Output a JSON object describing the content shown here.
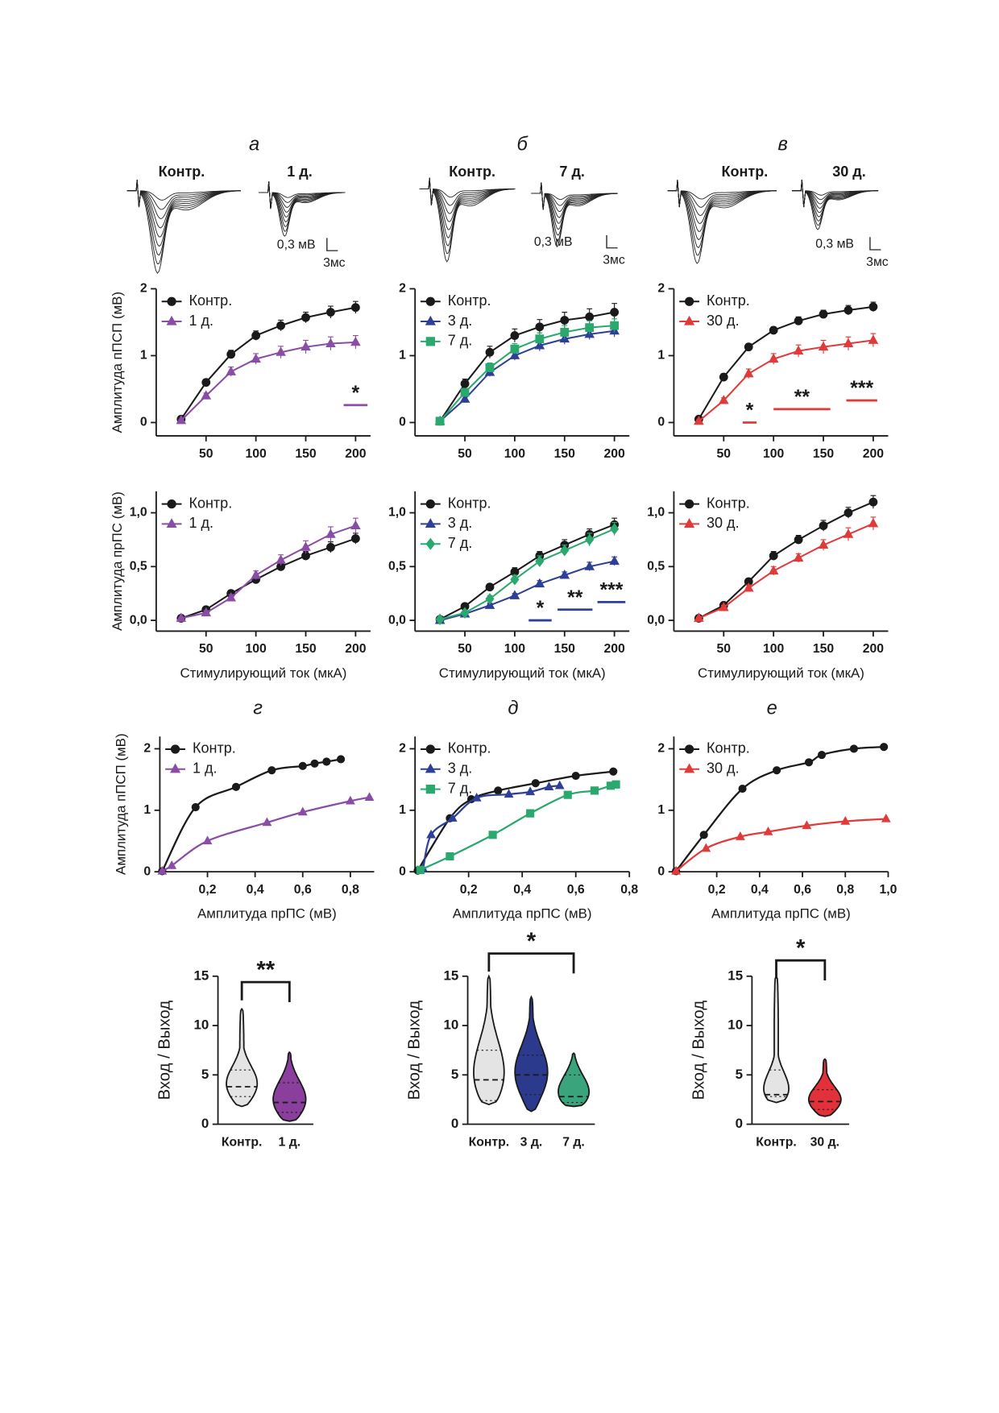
{
  "traces": [
    {
      "letter": "а",
      "labels": [
        "Контр.",
        "1 д."
      ],
      "scale_y": "0,3 мВ",
      "scale_x": "3мс"
    },
    {
      "letter": "б",
      "labels": [
        "Контр.",
        "7 д."
      ],
      "scale_y": "0,3 мВ",
      "scale_x": "3мс"
    },
    {
      "letter": "в",
      "labels": [
        "Контр.",
        "30 д."
      ],
      "scale_y": "0,3 мВ",
      "scale_x": "3мс"
    }
  ],
  "chart_data": [
    {
      "type": "line",
      "ylabel": "Амплитуда пПСП (мВ)",
      "x": [
        25,
        50,
        75,
        100,
        125,
        150,
        175,
        200
      ],
      "xlim": [
        0,
        215
      ],
      "xticks": [
        50,
        100,
        150,
        200
      ],
      "ylim": [
        -0.2,
        2
      ],
      "yticks": [
        0,
        1,
        2
      ],
      "series": [
        {
          "name": "Контр.",
          "color": "#1a1a1a",
          "marker": "circle",
          "values": [
            0.05,
            0.6,
            1.02,
            1.3,
            1.45,
            1.57,
            1.65,
            1.72
          ],
          "errors": [
            0.02,
            0.05,
            0.06,
            0.07,
            0.08,
            0.08,
            0.09,
            0.09
          ]
        },
        {
          "name": "1 д.",
          "color": "#8a4da6",
          "marker": "triangle",
          "values": [
            0.03,
            0.4,
            0.76,
            0.95,
            1.05,
            1.13,
            1.18,
            1.2
          ],
          "errors": [
            0.02,
            0.04,
            0.07,
            0.08,
            0.09,
            0.1,
            0.1,
            0.1
          ]
        }
      ],
      "annotations": [
        {
          "text": "*",
          "x_from": 188,
          "x_to": 212,
          "y": 0.26,
          "color": "#8a4da6"
        }
      ]
    },
    {
      "type": "line",
      "x": [
        25,
        50,
        75,
        100,
        125,
        150,
        175,
        200
      ],
      "xlim": [
        0,
        215
      ],
      "xticks": [
        50,
        100,
        150,
        200
      ],
      "ylim": [
        -0.2,
        2
      ],
      "yticks": [
        0,
        1,
        2
      ],
      "series": [
        {
          "name": "Контр.",
          "color": "#1a1a1a",
          "marker": "circle",
          "values": [
            0.02,
            0.58,
            1.05,
            1.3,
            1.43,
            1.53,
            1.58,
            1.65
          ],
          "errors": [
            0.02,
            0.07,
            0.09,
            0.1,
            0.11,
            0.12,
            0.12,
            0.13
          ]
        },
        {
          "name": "3 д.",
          "color": "#2e3f96",
          "marker": "triangle",
          "values": [
            0.02,
            0.35,
            0.75,
            1.0,
            1.15,
            1.25,
            1.32,
            1.37
          ],
          "errors": [
            0.02,
            0.05,
            0.06,
            0.07,
            0.08,
            0.08,
            0.08,
            0.09
          ]
        },
        {
          "name": "7 д.",
          "color": "#2aa86e",
          "marker": "square",
          "values": [
            0.02,
            0.45,
            0.82,
            1.1,
            1.25,
            1.35,
            1.42,
            1.45
          ],
          "errors": [
            0.02,
            0.06,
            0.07,
            0.08,
            0.09,
            0.1,
            0.1,
            0.1
          ]
        }
      ],
      "annotations": []
    },
    {
      "type": "line",
      "x": [
        25,
        50,
        75,
        100,
        125,
        150,
        175,
        200
      ],
      "xlim": [
        0,
        215
      ],
      "xticks": [
        50,
        100,
        150,
        200
      ],
      "ylim": [
        -0.2,
        2
      ],
      "yticks": [
        0,
        1,
        2
      ],
      "series": [
        {
          "name": "Контр.",
          "color": "#1a1a1a",
          "marker": "circle",
          "values": [
            0.05,
            0.68,
            1.13,
            1.38,
            1.52,
            1.62,
            1.68,
            1.73
          ],
          "errors": [
            0.02,
            0.05,
            0.05,
            0.05,
            0.06,
            0.06,
            0.07,
            0.07
          ]
        },
        {
          "name": "30 д.",
          "color": "#e03a3a",
          "marker": "triangle",
          "values": [
            0.02,
            0.33,
            0.73,
            0.95,
            1.07,
            1.13,
            1.18,
            1.23
          ],
          "errors": [
            0.02,
            0.04,
            0.07,
            0.08,
            0.09,
            0.1,
            0.1,
            0.1
          ]
        }
      ],
      "annotations": [
        {
          "text": "*",
          "x_from": 69,
          "x_to": 83,
          "y": 0.0,
          "color": "#e03a3a"
        },
        {
          "text": "**",
          "x_from": 100,
          "x_to": 157,
          "y": 0.2,
          "color": "#e03a3a"
        },
        {
          "text": "***",
          "x_from": 173,
          "x_to": 204,
          "y": 0.33,
          "color": "#e03a3a"
        }
      ]
    },
    {
      "type": "line",
      "ylabel": "Амплитуда прПС (мВ)",
      "xlabel": "Стимулирующий ток (мкА)",
      "x": [
        25,
        50,
        75,
        100,
        125,
        150,
        175,
        200
      ],
      "xlim": [
        0,
        215
      ],
      "xticks": [
        50,
        100,
        150,
        200
      ],
      "ylim": [
        -0.1,
        1.2
      ],
      "yticks": [
        {
          "value": 0,
          "label": "0,0"
        },
        {
          "value": 0.5,
          "label": "0,5"
        },
        {
          "value": 1,
          "label": "1,0"
        }
      ],
      "series": [
        {
          "name": "Контр.",
          "color": "#1a1a1a",
          "marker": "circle",
          "values": [
            0.02,
            0.1,
            0.25,
            0.38,
            0.5,
            0.6,
            0.68,
            0.76
          ],
          "errors": [
            0.01,
            0.02,
            0.03,
            0.03,
            0.04,
            0.04,
            0.05,
            0.05
          ]
        },
        {
          "name": "1 д.",
          "color": "#8a4da6",
          "marker": "triangle",
          "values": [
            0.02,
            0.07,
            0.21,
            0.42,
            0.56,
            0.68,
            0.8,
            0.88
          ],
          "errors": [
            0.01,
            0.02,
            0.03,
            0.04,
            0.05,
            0.06,
            0.07,
            0.07
          ]
        }
      ],
      "annotations": []
    },
    {
      "type": "line",
      "xlabel": "Стимулирующий ток (мкА)",
      "x": [
        25,
        50,
        75,
        100,
        125,
        150,
        175,
        200
      ],
      "xlim": [
        0,
        215
      ],
      "xticks": [
        50,
        100,
        150,
        200
      ],
      "ylim": [
        -0.1,
        1.2
      ],
      "yticks": [
        {
          "value": 0,
          "label": "0,0"
        },
        {
          "value": 0.5,
          "label": "0,5"
        },
        {
          "value": 1,
          "label": "1,0"
        }
      ],
      "series": [
        {
          "name": "Контр.",
          "color": "#1a1a1a",
          "marker": "circle",
          "values": [
            0.01,
            0.13,
            0.31,
            0.45,
            0.6,
            0.7,
            0.8,
            0.89
          ],
          "errors": [
            0.01,
            0.02,
            0.03,
            0.04,
            0.04,
            0.05,
            0.05,
            0.06
          ]
        },
        {
          "name": "3 д.",
          "color": "#2e3f96",
          "marker": "triangle",
          "values": [
            0.0,
            0.06,
            0.14,
            0.23,
            0.34,
            0.42,
            0.5,
            0.55
          ],
          "errors": [
            0.01,
            0.01,
            0.02,
            0.02,
            0.03,
            0.03,
            0.04,
            0.04
          ]
        },
        {
          "name": "7 д.",
          "color": "#2aa86e",
          "marker": "diamond",
          "values": [
            0.01,
            0.07,
            0.2,
            0.38,
            0.55,
            0.65,
            0.75,
            0.85
          ],
          "errors": [
            0.01,
            0.02,
            0.03,
            0.04,
            0.05,
            0.05,
            0.06,
            0.06
          ]
        }
      ],
      "annotations": [
        {
          "text": "*",
          "x_from": 114,
          "x_to": 137,
          "y": 0.0,
          "color": "#2e3f96"
        },
        {
          "text": "**",
          "x_from": 143,
          "x_to": 178,
          "y": 0.1,
          "color": "#2e3f96"
        },
        {
          "text": "***",
          "x_from": 183,
          "x_to": 211,
          "y": 0.17,
          "color": "#2e3f96"
        }
      ]
    },
    {
      "type": "line",
      "xlabel": "Стимулирующий ток (мкА)",
      "x": [
        25,
        50,
        75,
        100,
        125,
        150,
        175,
        200
      ],
      "xlim": [
        0,
        215
      ],
      "xticks": [
        50,
        100,
        150,
        200
      ],
      "ylim": [
        -0.1,
        1.2
      ],
      "yticks": [
        {
          "value": 0,
          "label": "0,0"
        },
        {
          "value": 0.5,
          "label": "0,5"
        },
        {
          "value": 1,
          "label": "1,0"
        }
      ],
      "series": [
        {
          "name": "Контр.",
          "color": "#1a1a1a",
          "marker": "circle",
          "values": [
            0.02,
            0.14,
            0.36,
            0.6,
            0.75,
            0.88,
            1.0,
            1.1
          ],
          "errors": [
            0.01,
            0.02,
            0.03,
            0.04,
            0.04,
            0.05,
            0.05,
            0.06
          ]
        },
        {
          "name": "30 д.",
          "color": "#e03a3a",
          "marker": "triangle",
          "values": [
            0.02,
            0.12,
            0.3,
            0.46,
            0.58,
            0.7,
            0.8,
            0.9
          ],
          "errors": [
            0.01,
            0.02,
            0.03,
            0.04,
            0.04,
            0.05,
            0.06,
            0.06
          ]
        }
      ],
      "annotations": []
    },
    {
      "type": "scatter",
      "panel_label": "г",
      "ylabel": "Амплитуда пПСП (мВ)",
      "xlabel": "Амплитуда прПС (мВ)",
      "xlim": [
        0,
        0.9
      ],
      "xticks": [
        {
          "value": 0.2,
          "label": "0,2"
        },
        {
          "value": 0.4,
          "label": "0,4"
        },
        {
          "value": 0.6,
          "label": "0,6"
        },
        {
          "value": 0.8,
          "label": "0,8"
        }
      ],
      "ylim": [
        0,
        2.2
      ],
      "yticks": [
        0,
        1,
        2
      ],
      "series": [
        {
          "name": "Контр.",
          "color": "#1a1a1a",
          "marker": "circle",
          "x": [
            0.01,
            0.15,
            0.32,
            0.47,
            0.6,
            0.65,
            0.7,
            0.76
          ],
          "y": [
            0.01,
            1.05,
            1.38,
            1.65,
            1.72,
            1.76,
            1.79,
            1.83
          ]
        },
        {
          "name": "1 д.",
          "color": "#8a4da6",
          "marker": "triangle",
          "x": [
            0.01,
            0.05,
            0.2,
            0.45,
            0.6,
            0.8,
            0.88
          ],
          "y": [
            0.01,
            0.1,
            0.5,
            0.8,
            0.97,
            1.15,
            1.21
          ]
        }
      ]
    },
    {
      "type": "scatter",
      "panel_label": "д",
      "xlabel": "Амплитуда прПС (мВ)",
      "xlim": [
        0,
        0.8
      ],
      "xticks": [
        {
          "value": 0.2,
          "label": "0,2"
        },
        {
          "value": 0.4,
          "label": "0,4"
        },
        {
          "value": 0.6,
          "label": "0,6"
        },
        {
          "value": 0.8,
          "label": "0,8"
        }
      ],
      "ylim": [
        0,
        2.2
      ],
      "yticks": [
        0,
        1,
        2
      ],
      "series": [
        {
          "name": "Контр.",
          "color": "#1a1a1a",
          "marker": "circle",
          "x": [
            0.01,
            0.13,
            0.21,
            0.31,
            0.45,
            0.6,
            0.74
          ],
          "y": [
            0.02,
            0.87,
            1.18,
            1.32,
            1.44,
            1.56,
            1.63
          ]
        },
        {
          "name": "3 д.",
          "color": "#2e3f96",
          "marker": "triangle",
          "x": [
            0.03,
            0.06,
            0.14,
            0.23,
            0.35,
            0.43,
            0.5,
            0.54
          ],
          "y": [
            0.05,
            0.6,
            0.87,
            1.2,
            1.26,
            1.3,
            1.38,
            1.4
          ]
        },
        {
          "name": "7 д.",
          "color": "#2aa86e",
          "marker": "square",
          "x": [
            0.02,
            0.13,
            0.29,
            0.43,
            0.57,
            0.67,
            0.73,
            0.75
          ],
          "y": [
            0.03,
            0.25,
            0.6,
            0.95,
            1.25,
            1.32,
            1.4,
            1.42
          ]
        }
      ]
    },
    {
      "type": "scatter",
      "panel_label": "е",
      "xlabel": "Амплитуда прПС (мВ)",
      "xlim": [
        0,
        1.0
      ],
      "xticks": [
        {
          "value": 0.2,
          "label": "0,2"
        },
        {
          "value": 0.4,
          "label": "0,4"
        },
        {
          "value": 0.6,
          "label": "0,6"
        },
        {
          "value": 0.8,
          "label": "0,8"
        },
        {
          "value": 1.0,
          "label": "1,0"
        }
      ],
      "ylim": [
        0,
        2.2
      ],
      "yticks": [
        0,
        1,
        2
      ],
      "series": [
        {
          "name": "Контр.",
          "color": "#1a1a1a",
          "marker": "circle",
          "x": [
            0.01,
            0.14,
            0.32,
            0.48,
            0.63,
            0.69,
            0.84,
            0.98
          ],
          "y": [
            0.01,
            0.6,
            1.35,
            1.65,
            1.78,
            1.9,
            2.0,
            2.03
          ]
        },
        {
          "name": "30 д.",
          "color": "#e03a3a",
          "marker": "triangle",
          "x": [
            0.01,
            0.15,
            0.31,
            0.44,
            0.62,
            0.8,
            0.99
          ],
          "y": [
            0.01,
            0.38,
            0.57,
            0.65,
            0.75,
            0.82,
            0.86
          ]
        }
      ]
    },
    {
      "type": "violin",
      "ylabel": "Вход / Выход",
      "ylim": [
        0,
        15
      ],
      "yticks": [
        0,
        5,
        10,
        15
      ],
      "groups": [
        {
          "name": "Контр.",
          "color": "#e4e4e4",
          "min": 1.8,
          "q1": 2.8,
          "median": 3.8,
          "q3": 5.5,
          "max": 11.7
        },
        {
          "name": "1 д.",
          "color": "#8b3f9c",
          "min": 0.3,
          "q1": 1.2,
          "median": 2.2,
          "q3": 4.2,
          "max": 7.3
        }
      ],
      "annotations": [
        {
          "text": "**",
          "from": 0,
          "to": 1,
          "y": 14.4
        }
      ]
    },
    {
      "type": "violin",
      "ylabel": "Вход / Выход",
      "ylim": [
        0,
        15
      ],
      "yticks": [
        0,
        5,
        10,
        15
      ],
      "groups": [
        {
          "name": "Контр.",
          "color": "#e4e4e4",
          "min": 2.0,
          "q1": 2.4,
          "median": 4.5,
          "q3": 7.5,
          "max": 15
        },
        {
          "name": "3 д.",
          "color": "#2c3a8e",
          "min": 1.3,
          "q1": 3.0,
          "median": 5.0,
          "q3": 7.0,
          "max": 12.9
        },
        {
          "name": "7 д.",
          "color": "#3aa57d",
          "min": 1.8,
          "q1": 2.2,
          "median": 2.8,
          "q3": 5.0,
          "max": 7.2
        }
      ],
      "annotations": [
        {
          "text": "*",
          "from": 0,
          "to": 2,
          "y": 17.3
        }
      ]
    },
    {
      "type": "violin",
      "ylabel": "Вход / Выход",
      "ylim": [
        0,
        15
      ],
      "yticks": [
        0,
        5,
        10,
        15
      ],
      "groups": [
        {
          "name": "Контр.",
          "color": "#e4e4e4",
          "min": 2.2,
          "q1": 2.8,
          "median": 3.0,
          "q3": 5.5,
          "max": 15
        },
        {
          "name": "30 д.",
          "color": "#e2313a",
          "min": 0.8,
          "q1": 1.5,
          "median": 2.3,
          "q3": 3.5,
          "max": 6.6
        }
      ],
      "annotations": [
        {
          "text": "*",
          "from": 0,
          "to": 1,
          "y": 16.6
        }
      ]
    }
  ]
}
